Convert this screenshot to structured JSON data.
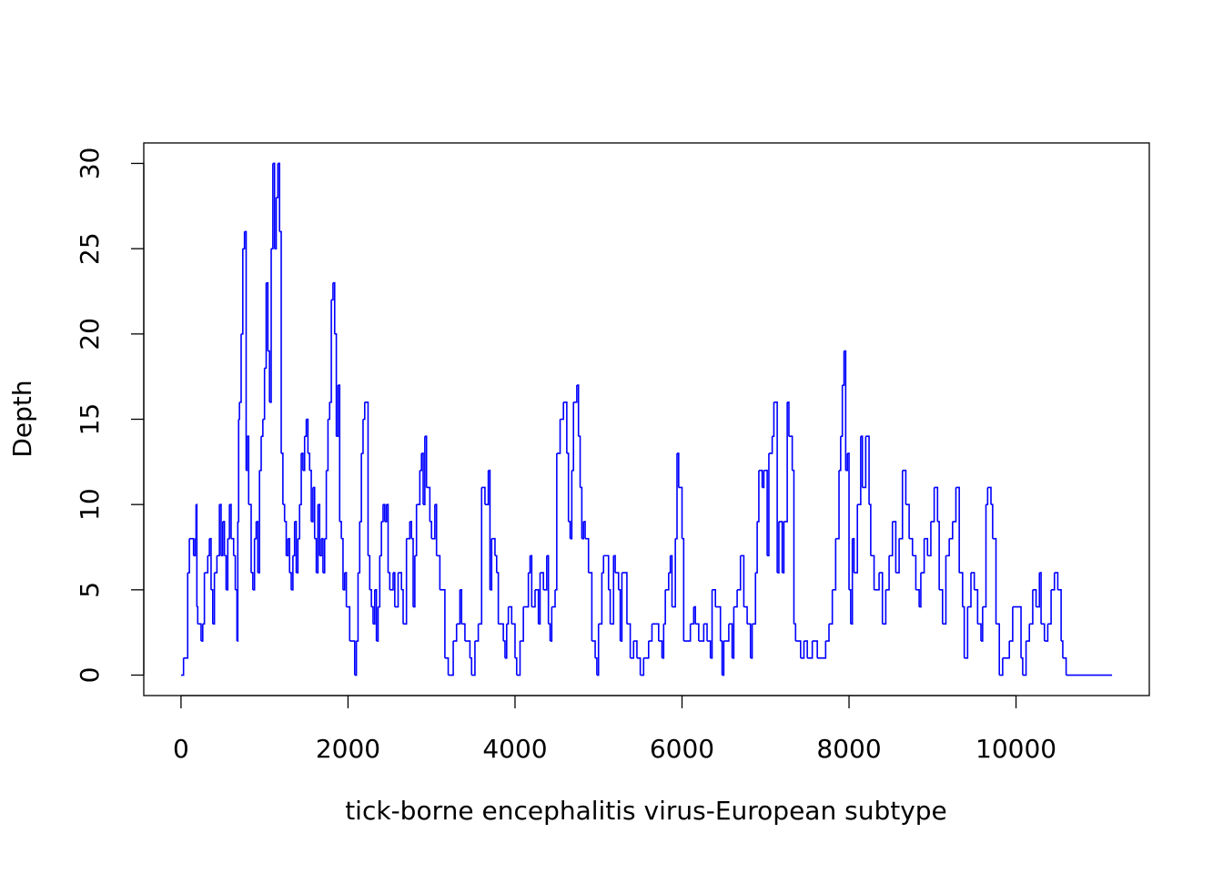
{
  "chart_data": {
    "type": "line",
    "step": true,
    "xlabel": "tick-borne encephalitis virus-European subtype",
    "ylabel": "Depth",
    "xlim": [
      -446,
      11596
    ],
    "ylim": [
      -1.2,
      31.2
    ],
    "xticks": [
      0,
      2000,
      4000,
      6000,
      8000,
      10000
    ],
    "yticks": [
      0,
      5,
      10,
      15,
      20,
      25,
      30
    ],
    "x": [
      0,
      30,
      80,
      100,
      150,
      170,
      180,
      190,
      200,
      240,
      260,
      280,
      300,
      320,
      340,
      360,
      380,
      400,
      430,
      460,
      480,
      500,
      520,
      540,
      560,
      580,
      600,
      630,
      650,
      670,
      680,
      690,
      700,
      720,
      740,
      760,
      780,
      790,
      810,
      840,
      860,
      880,
      900,
      920,
      940,
      960,
      980,
      1000,
      1020,
      1040,
      1060,
      1080,
      1100,
      1120,
      1140,
      1160,
      1180,
      1200,
      1220,
      1240,
      1260,
      1280,
      1300,
      1320,
      1340,
      1360,
      1380,
      1400,
      1420,
      1440,
      1460,
      1480,
      1500,
      1520,
      1540,
      1560,
      1580,
      1600,
      1620,
      1640,
      1660,
      1680,
      1700,
      1720,
      1740,
      1760,
      1780,
      1800,
      1820,
      1840,
      1860,
      1880,
      1900,
      1920,
      1940,
      1960,
      1980,
      2020,
      2080,
      2100,
      2120,
      2140,
      2160,
      2180,
      2200,
      2240,
      2260,
      2280,
      2300,
      2320,
      2340,
      2360,
      2380,
      2400,
      2420,
      2440,
      2460,
      2480,
      2500,
      2540,
      2560,
      2600,
      2640,
      2660,
      2700,
      2740,
      2760,
      2780,
      2800,
      2820,
      2860,
      2880,
      2900,
      2920,
      2940,
      2980,
      3000,
      3040,
      3060,
      3100,
      3160,
      3200,
      3260,
      3300,
      3340,
      3360,
      3400,
      3460,
      3480,
      3520,
      3560,
      3600,
      3640,
      3680,
      3700,
      3720,
      3760,
      3780,
      3800,
      3860,
      3880,
      3900,
      3920,
      3960,
      4000,
      4020,
      4060,
      4100,
      4160,
      4180,
      4200,
      4240,
      4280,
      4300,
      4340,
      4380,
      4400,
      4420,
      4440,
      4480,
      4500,
      4540,
      4580,
      4620,
      4640,
      4660,
      4680,
      4700,
      4740,
      4760,
      4780,
      4800,
      4820,
      4840,
      4880,
      4920,
      4960,
      4980,
      5000,
      5040,
      5060,
      5120,
      5140,
      5180,
      5200,
      5240,
      5260,
      5280,
      5340,
      5380,
      5420,
      5460,
      5500,
      5540,
      5600,
      5640,
      5720,
      5760,
      5780,
      5800,
      5840,
      5860,
      5880,
      5920,
      5940,
      5960,
      6000,
      6020,
      6100,
      6140,
      6160,
      6200,
      6260,
      6300,
      6340,
      6360,
      6400,
      6460,
      6480,
      6500,
      6560,
      6600,
      6620,
      6660,
      6700,
      6740,
      6780,
      6820,
      6840,
      6880,
      6900,
      6920,
      6960,
      6980,
      7020,
      7040,
      7080,
      7100,
      7140,
      7160,
      7200,
      7220,
      7260,
      7280,
      7320,
      7340,
      7360,
      7420,
      7460,
      7500,
      7560,
      7620,
      7720,
      7760,
      7800,
      7840,
      7880,
      7900,
      7920,
      7940,
      7960,
      7980,
      8000,
      8020,
      8040,
      8060,
      8100,
      8140,
      8160,
      8200,
      8240,
      8260,
      8300,
      8360,
      8400,
      8440,
      8480,
      8520,
      8560,
      8600,
      8640,
      8680,
      8720,
      8760,
      8800,
      8840,
      8860,
      8900,
      8940,
      8980,
      9020,
      9060,
      9080,
      9120,
      9160,
      9200,
      9240,
      9280,
      9320,
      9360,
      9380,
      9420,
      9460,
      9500,
      9540,
      9580,
      9600,
      9640,
      9660,
      9700,
      9720,
      9760,
      9800,
      9840,
      9920,
      9960,
      10060,
      10080,
      10120,
      10160,
      10200,
      10240,
      10280,
      10300,
      10340,
      10380,
      10420,
      10460,
      10500,
      10540,
      10560,
      10600,
      11150
    ],
    "series": [
      {
        "name": "Depth",
        "color": "#0000ff",
        "values": [
          0,
          1,
          6,
          8,
          7,
          8,
          10,
          4,
          3,
          2,
          3,
          6,
          6,
          7,
          8,
          5,
          3,
          6,
          7,
          10,
          7,
          9,
          7,
          5,
          8,
          10,
          8,
          7,
          5,
          2,
          9,
          15,
          16,
          20,
          25,
          26,
          12,
          14,
          10,
          6,
          5,
          8,
          9,
          6,
          12,
          14,
          15,
          18,
          23,
          19,
          16,
          25,
          30,
          25,
          28,
          30,
          26,
          13,
          10,
          9,
          7,
          8,
          6,
          5,
          7,
          9,
          6,
          8,
          10,
          13,
          12,
          14,
          15,
          13,
          12,
          9,
          11,
          8,
          6,
          10,
          7,
          8,
          6,
          8,
          12,
          15,
          16,
          22,
          23,
          20,
          14,
          17,
          9,
          8,
          5,
          6,
          4,
          2,
          0,
          2,
          6,
          9,
          13,
          15,
          16,
          7,
          5,
          4,
          3,
          5,
          2,
          4,
          7,
          9,
          10,
          9,
          10,
          6,
          5,
          6,
          4,
          6,
          5,
          3,
          8,
          9,
          8,
          4,
          7,
          10,
          12,
          13,
          10,
          14,
          11,
          9,
          8,
          10,
          7,
          5,
          1,
          0,
          2,
          3,
          5,
          3,
          2,
          1,
          0,
          2,
          3,
          11,
          10,
          12,
          5,
          8,
          7,
          6,
          3,
          2,
          1,
          3,
          4,
          3,
          1,
          0,
          2,
          4,
          6,
          7,
          4,
          5,
          3,
          6,
          5,
          7,
          3,
          2,
          4,
          5,
          13,
          15,
          16,
          13,
          9,
          8,
          12,
          16,
          17,
          14,
          11,
          8,
          9,
          8,
          6,
          2,
          1,
          0,
          3,
          6,
          7,
          5,
          3,
          7,
          6,
          5,
          2,
          6,
          3,
          1,
          2,
          1,
          0,
          1,
          2,
          3,
          2,
          1,
          3,
          5,
          6,
          7,
          4,
          8,
          13,
          11,
          8,
          2,
          3,
          4,
          3,
          2,
          3,
          2,
          1,
          5,
          4,
          2,
          0,
          2,
          3,
          1,
          4,
          5,
          7,
          4,
          3,
          1,
          3,
          6,
          9,
          12,
          11,
          12,
          7,
          13,
          14,
          16,
          6,
          9,
          6,
          9,
          16,
          14,
          12,
          3,
          2,
          1,
          2,
          1,
          2,
          1,
          2,
          3,
          5,
          8,
          12,
          14,
          17,
          19,
          12,
          13,
          5,
          3,
          8,
          6,
          10,
          14,
          11,
          14,
          10,
          7,
          5,
          6,
          3,
          5,
          7,
          9,
          6,
          8,
          12,
          10,
          8,
          7,
          5,
          4,
          6,
          8,
          7,
          9,
          11,
          9,
          5,
          3,
          7,
          8,
          9,
          11,
          6,
          4,
          1,
          4,
          6,
          5,
          3,
          2,
          4,
          10,
          11,
          10,
          8,
          3,
          0,
          1,
          2,
          4,
          1,
          0,
          2,
          3,
          5,
          4,
          6,
          3,
          2,
          3,
          5,
          6,
          5,
          2,
          1,
          0,
          0
        ]
      }
    ]
  }
}
